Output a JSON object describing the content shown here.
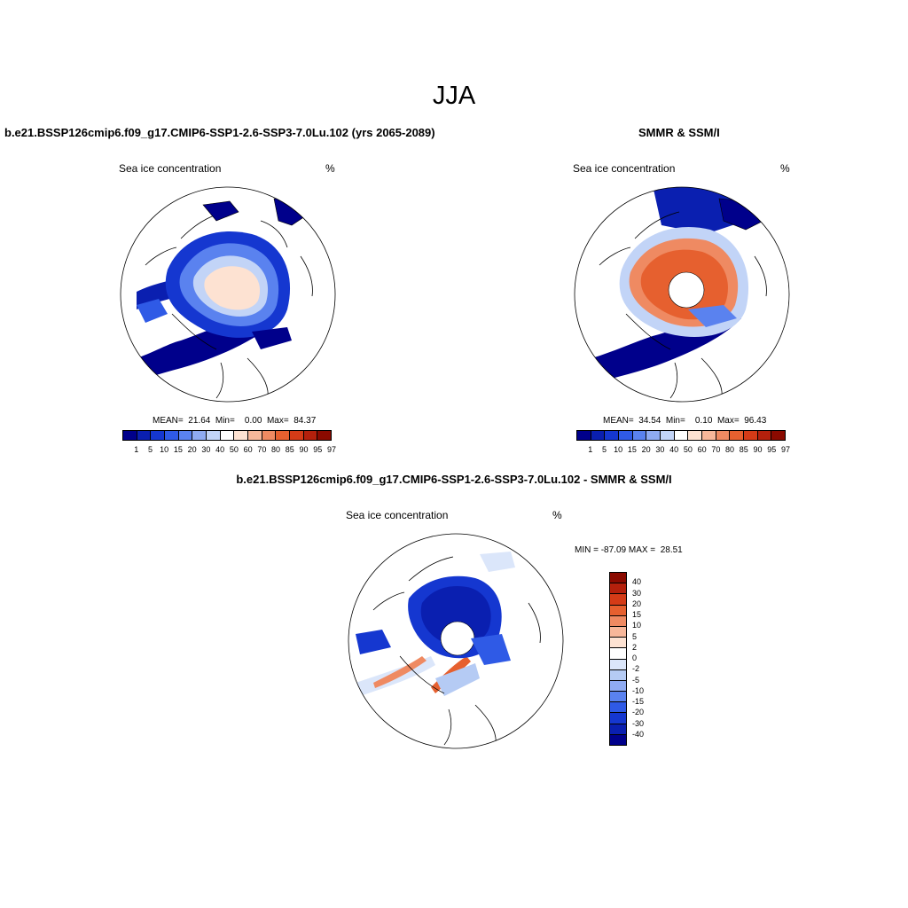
{
  "title": "JJA",
  "panels": [
    {
      "title": "b.e21.BSSP126cmip6.f09_g17.CMIP6-SSP1-2.6-SSP3-7.0Lu.102 (yrs 2065-2089)",
      "variable": "Sea ice concentration",
      "units": "%",
      "stats": "MEAN=  21.64  Min=    0.00  Max=  84.37"
    },
    {
      "title": "SMMR & SSM/I",
      "variable": "Sea ice concentration",
      "units": "%",
      "stats": "MEAN=  34.54  Min=    0.10  Max=  96.43"
    },
    {
      "title": "b.e21.BSSP126cmip6.f09_g17.CMIP6-SSP1-2.6-SSP3-7.0Lu.102 - SMMR & SSM/I",
      "variable": "Sea ice concentration",
      "units": "%",
      "stats": "MIN = -87.09 MAX =  28.51"
    }
  ],
  "colorbar_concentration": {
    "labels": [
      "1",
      "5",
      "10",
      "15",
      "20",
      "30",
      "40",
      "50",
      "60",
      "70",
      "80",
      "85",
      "90",
      "95",
      "97"
    ],
    "colors": [
      "#00008b",
      "#0a1fb0",
      "#1537d0",
      "#2f5ae6",
      "#5a82ef",
      "#8fabf2",
      "#c2d4f7",
      "#ffffff",
      "#fde2d2",
      "#f7b79a",
      "#ef8a62",
      "#e6602f",
      "#d43b17",
      "#b4200c",
      "#8b0a00"
    ]
  },
  "colorbar_difference": {
    "labels": [
      "40",
      "30",
      "20",
      "15",
      "10",
      "5",
      "2",
      "0",
      "-2",
      "-5",
      "-10",
      "-15",
      "-20",
      "-30",
      "-40"
    ],
    "colors": [
      "#8b0a00",
      "#b4200c",
      "#d43b17",
      "#e6602f",
      "#ef8a62",
      "#f7b79a",
      "#fde2d2",
      "#ffffff",
      "#dbe6fa",
      "#b5cbf4",
      "#8fabf2",
      "#5a82ef",
      "#2f5ae6",
      "#1537d0",
      "#0a1fb0",
      "#00008b"
    ]
  }
}
